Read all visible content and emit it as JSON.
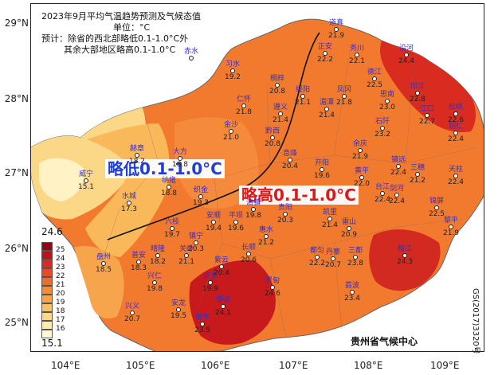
{
  "title": {
    "line1": "2023年9月平均气温趋势预测及气候态值",
    "line2": "单位：°C",
    "line3": "预计：除省的西北部略低0.1-1.0°C外",
    "line4": "其余大部地区略高0.1-1.0°C"
  },
  "labels": {
    "low_band": "略低0.1-1.0°C",
    "high_band": "略高0.1-1.0°C",
    "agency": "贵州省气候中心",
    "map_permit": "GS(2017)3320号"
  },
  "axes": {
    "lat_ticks": [
      "29°N",
      "28°N",
      "27°N",
      "26°N",
      "25°N"
    ],
    "lon_ticks": [
      "104°E",
      "105°E",
      "106°E",
      "107°E",
      "108°E",
      "109°E"
    ]
  },
  "legend": {
    "max_label": "24.6",
    "min_label": "15.1",
    "levels": [
      {
        "label": "25",
        "color": "#8c0a14"
      },
      {
        "label": "24",
        "color": "#b8141c"
      },
      {
        "label": "23",
        "color": "#d92b1f"
      },
      {
        "label": "22",
        "color": "#ea4a26"
      },
      {
        "label": "21",
        "color": "#f06a30"
      },
      {
        "label": "20",
        "color": "#f58a3c"
      },
      {
        "label": "19",
        "color": "#f7a54d"
      },
      {
        "label": "18",
        "color": "#f9c066"
      },
      {
        "label": "17",
        "color": "#fbd888"
      },
      {
        "label": "16",
        "color": "#fdecae"
      },
      {
        "label": "",
        "color": "#fff7d6"
      }
    ]
  },
  "stations": [
    {
      "name": "道真",
      "value": "21.9"
    },
    {
      "name": "正安",
      "value": "22.2"
    },
    {
      "name": "务川",
      "value": "22.1"
    },
    {
      "name": "沿河",
      "value": "24.4"
    },
    {
      "name": "习水",
      "value": "19.2"
    },
    {
      "name": "桐梓",
      "value": "20.8"
    },
    {
      "name": "绥阳",
      "value": "21.1"
    },
    {
      "name": "凤冈",
      "value": "21.8"
    },
    {
      "name": "德江",
      "value": "22.5"
    },
    {
      "name": "印江",
      "value": "22.8"
    },
    {
      "name": "松桃",
      "value": "22.6"
    },
    {
      "name": "赤水",
      "value": ""
    },
    {
      "name": "仁怀",
      "value": "21.8"
    },
    {
      "name": "遵义",
      "value": "21.4"
    },
    {
      "name": "湄潭",
      "value": "21.4"
    },
    {
      "name": "思南",
      "value": "23.0"
    },
    {
      "name": "石阡",
      "value": "23.2"
    },
    {
      "name": "江口",
      "value": "22.7"
    },
    {
      "name": "铜仁",
      "value": "22.4"
    },
    {
      "name": "金沙",
      "value": "21.0"
    },
    {
      "name": "黔西",
      "value": "20.8"
    },
    {
      "name": "息烽",
      "value": "20.4"
    },
    {
      "name": "开阳",
      "value": "19.6"
    },
    {
      "name": "余庆",
      "value": "21.9"
    },
    {
      "name": "镇远",
      "value": "22.4"
    },
    {
      "name": "三穗",
      "value": "21.2"
    },
    {
      "name": "天柱",
      "value": "22.4"
    },
    {
      "name": "威宁",
      "value": "15.1"
    },
    {
      "name": "赫章",
      "value": "18.2"
    },
    {
      "name": "大方",
      "value": "18.8"
    },
    {
      "name": "纳雍",
      "value": "18.8"
    },
    {
      "name": "织金",
      "value": "19.3"
    },
    {
      "name": "黄平",
      "value": "22.0"
    },
    {
      "name": "台江",
      "value": "22.4"
    },
    {
      "name": "剑河",
      "value": "22.4"
    },
    {
      "name": "锦屏",
      "value": "22.5"
    },
    {
      "name": "水城",
      "value": "17.3"
    },
    {
      "name": "六枝",
      "value": "19.7"
    },
    {
      "name": "安顺",
      "value": "19.4"
    },
    {
      "name": "平坝",
      "value": "19.6"
    },
    {
      "name": "清镇",
      "value": "19.8"
    },
    {
      "name": "贵阳",
      "value": "20.3"
    },
    {
      "name": "凯里",
      "value": "21.4"
    },
    {
      "name": "雷山",
      "value": "20.9"
    },
    {
      "name": "黎平",
      "value": "21.9"
    },
    {
      "name": "盘州",
      "value": "18.5"
    },
    {
      "name": "普安",
      "value": "18.3"
    },
    {
      "name": "晴隆",
      "value": "18.2"
    },
    {
      "name": "关岭",
      "value": "21.1"
    },
    {
      "name": "镇宁",
      "value": "20.3"
    },
    {
      "name": "长顺",
      "value": "20.6"
    },
    {
      "name": "惠水",
      "value": "21.2"
    },
    {
      "name": "丹寨",
      "value": "20.7"
    },
    {
      "name": "都匀",
      "value": "22.2"
    },
    {
      "name": "三都",
      "value": "23.8"
    },
    {
      "name": "榕江",
      "value": "24.3"
    },
    {
      "name": "兴仁",
      "value": "19.8"
    },
    {
      "name": "贞丰",
      "value": "19.9"
    },
    {
      "name": "紫云",
      "value": "20.4"
    },
    {
      "name": "罗甸",
      "value": "24.6"
    },
    {
      "name": "荔波",
      "value": "23.4"
    },
    {
      "name": "兴义",
      "value": "20.7"
    },
    {
      "name": "安龙",
      "value": "19.5"
    },
    {
      "name": "册亨",
      "value": "23.5"
    },
    {
      "name": "望谟",
      "value": "24.1"
    }
  ]
}
